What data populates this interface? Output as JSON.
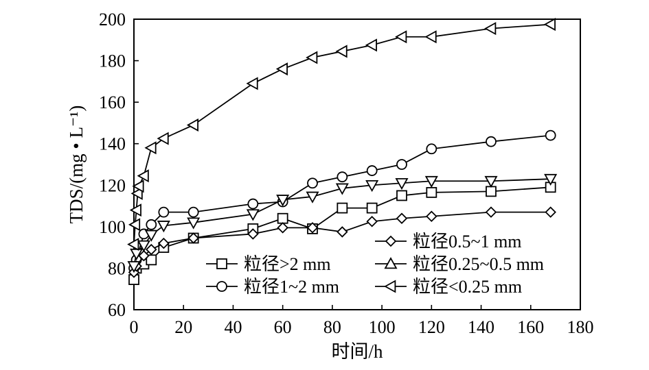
{
  "chart_data": {
    "type": "line",
    "xlabel": "时间/h",
    "ylabel": "TDS/(mg • L⁻¹)",
    "xlim": [
      0,
      180
    ],
    "ylim": [
      60,
      200
    ],
    "xticks": [
      0,
      20,
      40,
      60,
      80,
      100,
      120,
      140,
      160,
      180
    ],
    "yticks": [
      60,
      80,
      100,
      120,
      140,
      160,
      180,
      200
    ],
    "grid": false,
    "legend_placement": "bottom-right",
    "series": [
      {
        "name": "粒径>2 mm",
        "marker": "square",
        "points": [
          [
            0,
            74.5
          ],
          [
            1,
            80
          ],
          [
            4,
            82
          ],
          [
            7,
            84
          ],
          [
            12,
            90
          ],
          [
            24,
            94.5
          ],
          [
            48,
            99
          ],
          [
            60,
            104
          ],
          [
            72,
            99
          ],
          [
            84,
            109
          ],
          [
            96,
            109
          ],
          [
            108,
            115
          ],
          [
            120,
            116.5
          ],
          [
            144,
            117
          ],
          [
            168,
            119
          ]
        ]
      },
      {
        "name": "粒径1~2 mm",
        "marker": "circle",
        "points": [
          [
            0,
            80
          ],
          [
            1,
            84
          ],
          [
            4,
            96.5
          ],
          [
            7,
            101
          ],
          [
            12,
            107
          ],
          [
            24,
            107
          ],
          [
            48,
            111
          ],
          [
            60,
            112
          ],
          [
            72,
            121
          ],
          [
            84,
            124
          ],
          [
            96,
            127
          ],
          [
            108,
            130
          ],
          [
            120,
            137.5
          ],
          [
            144,
            141
          ],
          [
            168,
            144
          ]
        ]
      },
      {
        "name": "粒径0.5~1 mm",
        "marker": "diamond",
        "points": [
          [
            0,
            78
          ],
          [
            1,
            81
          ],
          [
            4,
            86
          ],
          [
            7,
            89
          ],
          [
            12,
            92
          ],
          [
            24,
            94.5
          ],
          [
            48,
            96.5
          ],
          [
            60,
            99.5
          ],
          [
            72,
            99.5
          ],
          [
            84,
            97.5
          ],
          [
            96,
            102.5
          ],
          [
            108,
            104
          ],
          [
            120,
            105
          ],
          [
            144,
            107
          ],
          [
            168,
            107
          ]
        ]
      },
      {
        "name": "粒径0.25~0.5 mm",
        "marker": "triangle-down",
        "points": [
          [
            0,
            81
          ],
          [
            1,
            87
          ],
          [
            4,
            91
          ],
          [
            7,
            96
          ],
          [
            12,
            100.5
          ],
          [
            24,
            102
          ],
          [
            48,
            106
          ],
          [
            60,
            113
          ],
          [
            72,
            114.5
          ],
          [
            84,
            118.5
          ],
          [
            96,
            120
          ],
          [
            108,
            121
          ],
          [
            120,
            122
          ],
          [
            144,
            122
          ],
          [
            168,
            123
          ]
        ]
      },
      {
        "name": "粒径<0.25 mm",
        "marker": "triangle-left",
        "points": [
          [
            0,
            91.5
          ],
          [
            0.5,
            101
          ],
          [
            1,
            108
          ],
          [
            1.5,
            116
          ],
          [
            2,
            119.5
          ],
          [
            4,
            124.5
          ],
          [
            7,
            138
          ],
          [
            12,
            142.5
          ],
          [
            24,
            149
          ],
          [
            48,
            169
          ],
          [
            60,
            176
          ],
          [
            72,
            181.5
          ],
          [
            84,
            184.5
          ],
          [
            96,
            187.5
          ],
          [
            108,
            191.5
          ],
          [
            120,
            191.5
          ],
          [
            144,
            195.5
          ],
          [
            168,
            197.5
          ]
        ]
      }
    ],
    "legend_columns": [
      [
        "粒径>2 mm",
        "粒径1~2 mm"
      ],
      [
        "粒径0.5~1 mm",
        "粒径0.25~0.5 mm",
        "粒径<0.25 mm"
      ]
    ]
  }
}
